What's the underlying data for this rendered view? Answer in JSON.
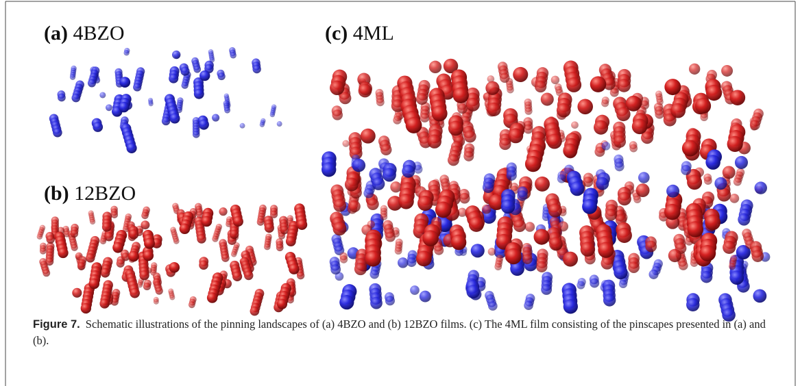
{
  "panels": [
    {
      "letter": "(a)",
      "name": "4BZO"
    },
    {
      "letter": "(b)",
      "name": "12BZO"
    },
    {
      "letter": "(c)",
      "name": "4ML"
    }
  ],
  "caption": {
    "label": "Figure 7.",
    "text": "Schematic illustrations of the pinning landscapes of (a) 4BZO and (b) 12BZO films. (c) The 4ML film consisting of the pinscapes presented in (a) and (b)."
  }
}
